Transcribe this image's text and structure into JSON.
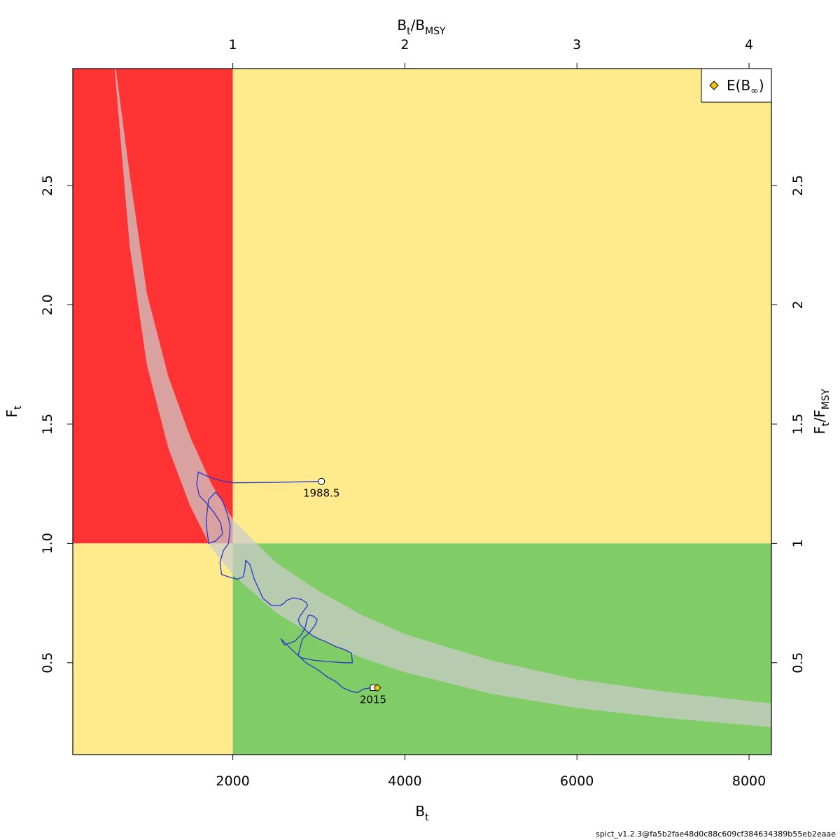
{
  "chart_data": {
    "type": "line",
    "title": "",
    "xlabel": {
      "main": "B",
      "sub": "t"
    },
    "ylabel": {
      "main": "F",
      "sub": "t"
    },
    "x2label": {
      "main": "B",
      "sub": "t",
      "slash": "/",
      "main2": "B",
      "sub2": "MSY"
    },
    "y2label": {
      "main": "F",
      "sub": "t",
      "slash": "/",
      "main2": "F",
      "sub2": "MSY"
    },
    "xlim": [
      140,
      8260
    ],
    "ylim": [
      0.115,
      2.99
    ],
    "x_ticks": [
      "2000",
      "4000",
      "6000",
      "8000"
    ],
    "x_tick_values": [
      2000,
      4000,
      6000,
      8000
    ],
    "y_ticks": [
      "0.5",
      "1.0",
      "1.5",
      "2.0",
      "2.5"
    ],
    "y_tick_values": [
      0.5,
      1.0,
      1.5,
      2.0,
      2.5
    ],
    "x2_ticks": [
      "1",
      "2",
      "3",
      "4"
    ],
    "x2_tick_values": [
      1,
      2,
      3,
      4
    ],
    "y2_ticks": [
      "0.5",
      "1",
      "1.5",
      "2",
      "2.5"
    ],
    "y2_tick_values": [
      0.5,
      1,
      1.5,
      2,
      2.5
    ],
    "Bmsy": 2000,
    "Fmsy": 1.0,
    "zone_colors": {
      "overfished_overfishing": "#ff3333",
      "caution": "#ffeb8c",
      "healthy": "#80cc66"
    },
    "band_color": "#cccccc",
    "msy_band": {
      "x": [
        600,
        800,
        1000,
        1250,
        1500,
        1750,
        2000,
        2500,
        3000,
        3500,
        4000,
        5000,
        6000,
        7000,
        8260
      ],
      "upper": [
        3.1,
        2.55,
        2.05,
        1.7,
        1.45,
        1.25,
        1.1,
        0.92,
        0.8,
        0.7,
        0.62,
        0.51,
        0.43,
        0.38,
        0.33
      ],
      "lower": [
        3.1,
        2.25,
        1.75,
        1.4,
        1.16,
        0.98,
        0.87,
        0.71,
        0.6,
        0.52,
        0.46,
        0.37,
        0.31,
        0.27,
        0.23
      ]
    },
    "series": [
      {
        "color": "#2a35cc",
        "x": [
          3030,
          2500,
          2000,
          1900,
          1750,
          1650,
          1600,
          1580,
          1610,
          1680,
          1780,
          1860,
          1880,
          1800,
          1720,
          1700,
          1690,
          1720,
          1800,
          1880,
          1940,
          1970,
          1950,
          1890,
          1850,
          1870,
          1950,
          2050,
          2120,
          2140,
          2150,
          2200,
          2250,
          2350,
          2450,
          2550,
          2600,
          2620,
          2700,
          2800,
          2860,
          2870,
          2830,
          2790,
          2760,
          2780,
          2850,
          2920,
          3000,
          3100,
          3200,
          3300,
          3380,
          3390,
          3300,
          3100,
          2950,
          2800,
          2760,
          2780,
          2810,
          2900,
          2960,
          2980,
          2940,
          2880,
          2860,
          2840,
          2800,
          2720,
          2600,
          2560,
          2700,
          2850,
          2990,
          3100,
          3200,
          3280,
          3380,
          3450,
          3520,
          3600,
          3650
        ],
        "y": [
          1.26,
          1.256,
          1.254,
          1.26,
          1.275,
          1.29,
          1.3,
          1.25,
          1.2,
          1.175,
          1.13,
          1.085,
          1.04,
          1.01,
          1.0,
          1.05,
          1.1,
          1.185,
          1.215,
          1.18,
          1.12,
          1.07,
          1.0,
          0.97,
          0.92,
          0.87,
          0.86,
          0.85,
          0.86,
          0.89,
          0.93,
          0.91,
          0.85,
          0.77,
          0.74,
          0.74,
          0.75,
          0.76,
          0.772,
          0.765,
          0.75,
          0.74,
          0.72,
          0.7,
          0.68,
          0.66,
          0.635,
          0.615,
          0.6,
          0.585,
          0.567,
          0.555,
          0.54,
          0.5,
          0.5,
          0.505,
          0.51,
          0.52,
          0.53,
          0.56,
          0.6,
          0.63,
          0.66,
          0.68,
          0.695,
          0.7,
          0.68,
          0.645,
          0.62,
          0.59,
          0.575,
          0.6,
          0.55,
          0.5,
          0.47,
          0.44,
          0.42,
          0.395,
          0.38,
          0.375,
          0.39,
          0.395,
          0.39
        ]
      }
    ],
    "start_point": {
      "x": 3030,
      "y": 1.26,
      "label": "1988.5"
    },
    "end_point": {
      "x": 3630,
      "y": 0.395,
      "label": "2015"
    },
    "equilibrium_point": {
      "x": 3680,
      "y": 0.395
    },
    "legend": {
      "position": "top-right",
      "entries": [
        {
          "label_main": "E(B",
          "label_sub": "∞",
          "label_close": ")",
          "marker_color": "#f5c400"
        }
      ]
    }
  },
  "version_tag": "spict_v1.2.3@fa5b2fae48d0c88c609cf384634389b55eb2eaae"
}
